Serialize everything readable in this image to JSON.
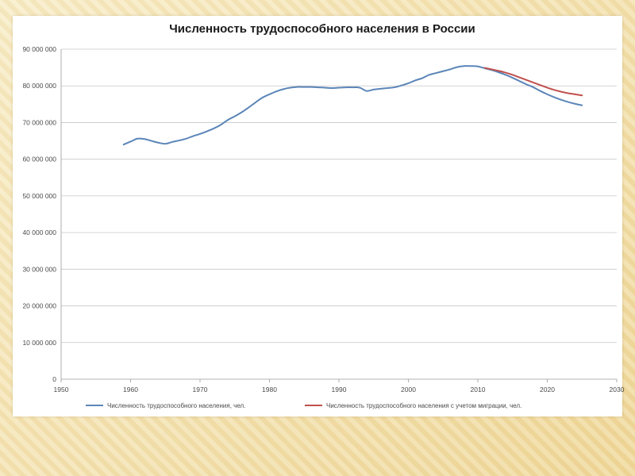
{
  "chart_data": {
    "type": "line",
    "title": "Численность трудоспособного населения в России",
    "xlabel": "",
    "ylabel": "",
    "xlim": [
      1950,
      2030
    ],
    "ylim": [
      0,
      90000000
    ],
    "x_ticks": [
      1950,
      1960,
      1970,
      1980,
      1990,
      2000,
      2010,
      2020,
      2030
    ],
    "x_tick_labels": [
      "1950",
      "1960",
      "1970",
      "1980",
      "1990",
      "2000",
      "2010",
      "2020",
      "2030"
    ],
    "y_ticks": [
      0,
      10000000,
      20000000,
      30000000,
      40000000,
      50000000,
      60000000,
      70000000,
      80000000,
      90000000
    ],
    "y_tick_labels": [
      "0",
      "10 000 000",
      "20 000 000",
      "30 000 000",
      "40 000 000",
      "50 000 000",
      "60 000 000",
      "70 000 000",
      "80 000 000",
      "90 000 000"
    ],
    "grid": true,
    "legend_position": "bottom",
    "series": [
      {
        "name": "Численность трудоспособного населения, чел.",
        "color": "#5b85b8",
        "x": [
          1959,
          1960,
          1961,
          1962,
          1963,
          1964,
          1965,
          1966,
          1967,
          1968,
          1969,
          1970,
          1971,
          1972,
          1973,
          1974,
          1975,
          1976,
          1977,
          1978,
          1979,
          1980,
          1981,
          1982,
          1983,
          1984,
          1985,
          1986,
          1987,
          1988,
          1989,
          1990,
          1991,
          1992,
          1993,
          1994,
          1995,
          1996,
          1997,
          1998,
          1999,
          2000,
          2001,
          2002,
          2003,
          2004,
          2005,
          2006,
          2007,
          2008,
          2009,
          2010,
          2011,
          2012,
          2013,
          2014,
          2015,
          2016,
          2017,
          2018,
          2019,
          2020,
          2021,
          2022,
          2023,
          2024,
          2025
        ],
        "y": [
          64000000,
          64800000,
          65600000,
          65500000,
          65000000,
          64500000,
          64200000,
          64700000,
          65100000,
          65600000,
          66300000,
          66900000,
          67600000,
          68400000,
          69400000,
          70700000,
          71700000,
          72800000,
          74100000,
          75500000,
          76800000,
          77700000,
          78500000,
          79100000,
          79500000,
          79700000,
          79700000,
          79700000,
          79600000,
          79500000,
          79400000,
          79500000,
          79600000,
          79600000,
          79500000,
          78600000,
          79000000,
          79200000,
          79400000,
          79600000,
          80100000,
          80700000,
          81500000,
          82100000,
          83000000,
          83500000,
          84000000,
          84500000,
          85100000,
          85400000,
          85400000,
          85300000,
          84800000,
          84300000,
          83700000,
          83000000,
          82200000,
          81300000,
          80400000,
          79600000,
          78600000,
          77700000,
          76900000,
          76200000,
          75600000,
          75100000,
          74700000
        ]
      },
      {
        "name": "Численность трудоспособного населения  с учетом миграции, чел.",
        "color": "#c0504d",
        "x": [
          2011,
          2012,
          2013,
          2014,
          2015,
          2016,
          2017,
          2018,
          2019,
          2020,
          2021,
          2022,
          2023,
          2024,
          2025
        ],
        "y": [
          84900000,
          84500000,
          84100000,
          83600000,
          83000000,
          82300000,
          81600000,
          80900000,
          80200000,
          79500000,
          78900000,
          78400000,
          78000000,
          77700000,
          77400000
        ]
      }
    ]
  }
}
